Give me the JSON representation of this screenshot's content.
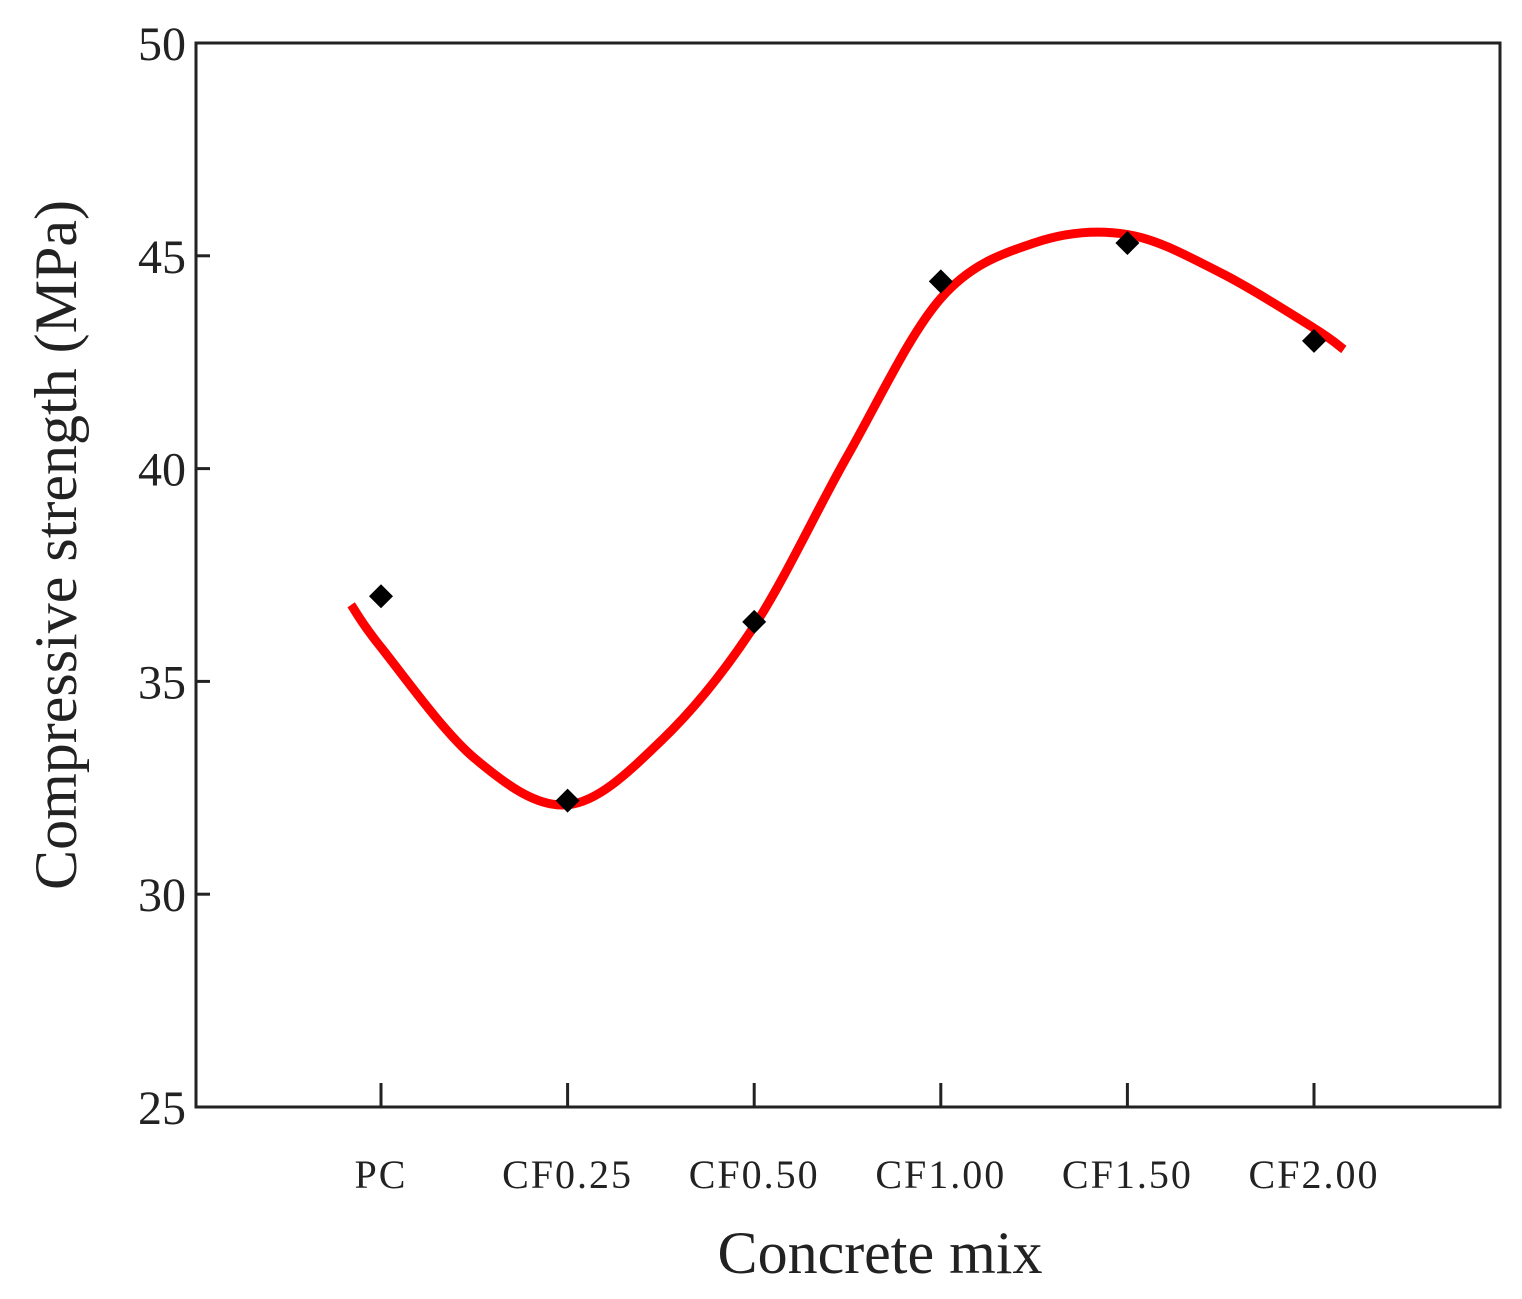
{
  "chart_data": {
    "type": "scatter",
    "title": "",
    "xlabel": "Concrete mix",
    "ylabel": "Compressive strength (MPa)",
    "categories": [
      "PC",
      "CF0.25",
      "CF0.50",
      "CF1.00",
      "CF1.50",
      "CF2.00"
    ],
    "ylim": [
      25,
      50
    ],
    "yticks": [
      25,
      30,
      35,
      40,
      45,
      50
    ],
    "grid": false,
    "legend": "none",
    "series": [
      {
        "marker": "diamond",
        "color": "#000000",
        "values": [
          37.0,
          32.2,
          36.4,
          44.4,
          45.3,
          43.0
        ]
      }
    ],
    "trend_line": {
      "color": "#ff0000",
      "style": "smooth",
      "x_range": [
        -0.16,
        5.16
      ],
      "points": [
        [
          -0.16,
          36.8
        ],
        [
          0.0,
          35.8
        ],
        [
          0.5,
          33.2
        ],
        [
          1.0,
          32.1
        ],
        [
          1.5,
          33.6
        ],
        [
          2.0,
          36.3
        ],
        [
          2.5,
          40.3
        ],
        [
          3.0,
          44.0
        ],
        [
          3.5,
          45.3
        ],
        [
          4.0,
          45.5
        ],
        [
          4.5,
          44.6
        ],
        [
          5.0,
          43.3
        ],
        [
          5.16,
          42.8
        ]
      ]
    }
  }
}
